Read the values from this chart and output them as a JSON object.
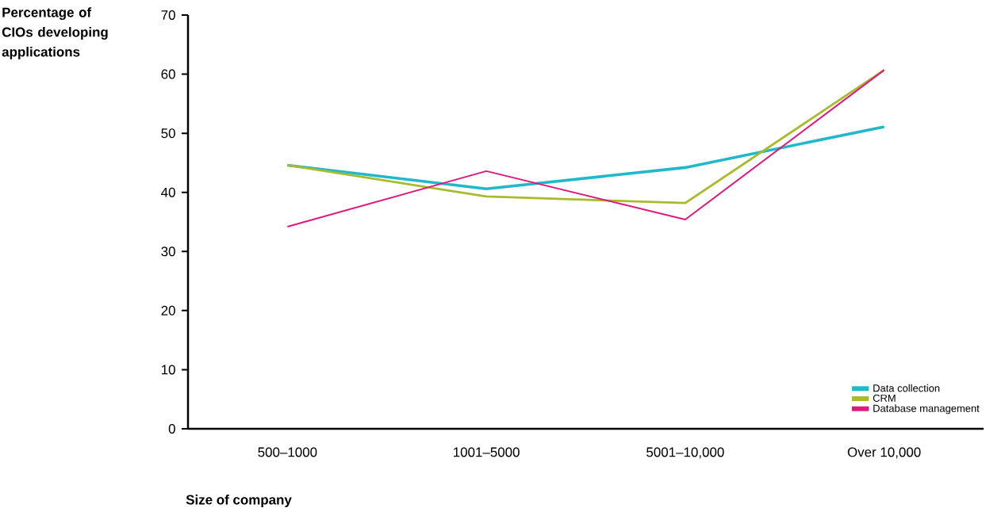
{
  "chart_data": {
    "type": "line",
    "xlabel": "Size of company",
    "ylabel": "Percentage of CIOs developing applications",
    "categories": [
      "500–1000",
      "1001–5000",
      "5001–10,000",
      "Over 10,000"
    ],
    "series": [
      {
        "name": "Data collection",
        "color": "#22b8cc",
        "values": [
          44.6,
          40.6,
          44.2,
          51.1
        ]
      },
      {
        "name": "CRM",
        "color": "#a9ba2a",
        "values": [
          44.6,
          39.3,
          38.2,
          60.7
        ]
      },
      {
        "name": "Database management",
        "color": "#e0197d",
        "values": [
          34.2,
          43.6,
          35.4,
          60.7
        ]
      }
    ],
    "ylim": [
      0,
      70
    ],
    "yticks": [
      0,
      10,
      20,
      30,
      40,
      50,
      60,
      70
    ],
    "grid": false,
    "legend": "bottom right",
    "marker": "none",
    "line_style": "solid"
  }
}
